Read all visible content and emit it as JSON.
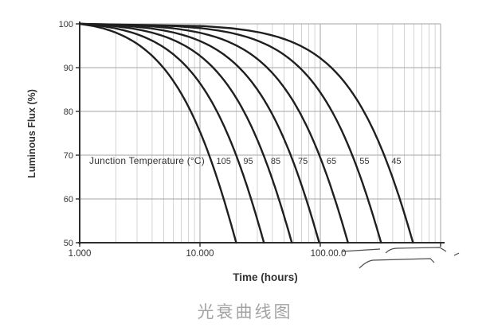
{
  "caption": "光衰曲线图",
  "chart_data": {
    "type": "line",
    "xlabel": "Time (hours)",
    "ylabel": "Luminous Flux (%)",
    "annotation": "Junction Temperature (°C)",
    "x": {
      "scale": "log",
      "min": 1000,
      "max": 1000000,
      "ticks": [
        {
          "value": 1000,
          "label": "1.000",
          "dx": 0
        },
        {
          "value": 10000,
          "label": "10.000",
          "dx": 0
        },
        {
          "value": 100000,
          "label": "100.00.0",
          "dx": 10
        }
      ]
    },
    "y": {
      "min": 50,
      "max": 100,
      "ticks": [
        {
          "value": 100,
          "label": "100"
        },
        {
          "value": 90,
          "label": "90"
        },
        {
          "value": 80,
          "label": "80"
        },
        {
          "value": 70,
          "label": "70"
        },
        {
          "value": 60,
          "label": "60"
        },
        {
          "value": 50,
          "label": "50"
        }
      ]
    },
    "grid": true,
    "legend_position": "inline-labels-at-70pct",
    "curve_model": {
      "start_time_hours": 1000,
      "start_flux_pct": 100,
      "shape": "weibull-decay",
      "weibull_shape": 1.2
    },
    "series": [
      {
        "label": "105",
        "t50_hours": 20000,
        "points": [
          [
            1000,
            100
          ],
          [
            4950,
            90
          ],
          [
            8390,
            80
          ],
          [
            11900,
            70
          ],
          [
            15700,
            60
          ],
          [
            20000,
            50
          ]
        ]
      },
      {
        "label": "95",
        "t50_hours": 34000,
        "points": [
          [
            1000,
            100
          ],
          [
            7870,
            90
          ],
          [
            13800,
            80
          ],
          [
            20000,
            70
          ],
          [
            26600,
            60
          ],
          [
            34000,
            50
          ]
        ]
      },
      {
        "label": "85",
        "t50_hours": 58000,
        "points": [
          [
            1000,
            100
          ],
          [
            12900,
            90
          ],
          [
            23200,
            80
          ],
          [
            33800,
            70
          ],
          [
            45200,
            60
          ],
          [
            58000,
            50
          ]
        ]
      },
      {
        "label": "75",
        "t50_hours": 98000,
        "points": [
          [
            1000,
            100
          ],
          [
            21200,
            90
          ],
          [
            38700,
            80
          ],
          [
            56800,
            70
          ],
          [
            76200,
            60
          ],
          [
            98000,
            50
          ]
        ]
      },
      {
        "label": "65",
        "t50_hours": 170000,
        "points": [
          [
            1000,
            100
          ],
          [
            36200,
            90
          ],
          [
            66700,
            80
          ],
          [
            98100,
            70
          ],
          [
            132000,
            60
          ],
          [
            170000,
            50
          ]
        ]
      },
      {
        "label": "55",
        "t50_hours": 320000,
        "points": [
          [
            1000,
            100
          ],
          [
            67400,
            90
          ],
          [
            125000,
            80
          ],
          [
            184400,
            70
          ],
          [
            248400,
            60
          ],
          [
            320000,
            50
          ]
        ]
      },
      {
        "label": "45",
        "t50_hours": 590000,
        "points": [
          [
            1000,
            100
          ],
          [
            123600,
            90
          ],
          [
            230000,
            80
          ],
          [
            339600,
            70
          ],
          [
            457800,
            60
          ],
          [
            590000,
            50
          ]
        ]
      }
    ],
    "colors": {
      "curve": "#1f1f1f",
      "axis": "#2e2e2e",
      "grid_major": "#a5a5a5",
      "grid_minor": "#c9c9c9",
      "text": "#333333",
      "scribble": "#4d4d4d",
      "caption": "#a3a3a3",
      "background": "#ffffff"
    }
  }
}
